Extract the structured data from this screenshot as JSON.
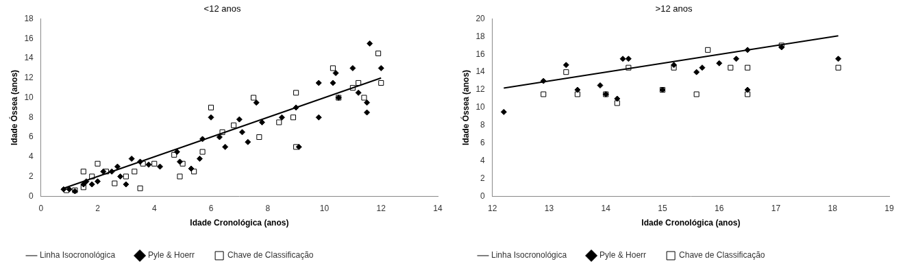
{
  "chart_data": [
    {
      "type": "scatter",
      "title": "<12 anos",
      "x_label": "Idade Cronológica (anos)",
      "y_label": "Idade Óssea (anos)",
      "xlim": [
        0,
        14
      ],
      "xticks": [
        0,
        2,
        4,
        6,
        8,
        10,
        12,
        14
      ],
      "ylim": [
        0,
        18
      ],
      "yticks": [
        0,
        2,
        4,
        6,
        8,
        10,
        12,
        14,
        16,
        18
      ],
      "grid": false,
      "legend": "bottom",
      "series": [
        {
          "name": "Pyle & Hoerr",
          "color": "#000000",
          "marker": "diamond",
          "x": [
            0.8,
            1.0,
            1.2,
            1.5,
            1.6,
            1.8,
            2.0,
            2.2,
            2.5,
            2.7,
            2.8,
            3.0,
            3.2,
            3.5,
            3.8,
            4.2,
            4.8,
            4.9,
            5.3,
            5.6,
            5.7,
            6.0,
            6.3,
            6.5,
            7.0,
            7.1,
            7.3,
            7.6,
            7.8,
            8.5,
            9.0,
            9.1,
            9.8,
            9.8,
            10.3,
            10.4,
            10.5,
            11.0,
            11.2,
            11.5,
            11.6,
            11.5,
            12.0
          ],
          "values": [
            0.7,
            0.7,
            0.5,
            1.2,
            1.5,
            1.2,
            1.5,
            2.5,
            2.5,
            3.0,
            2.0,
            1.2,
            3.8,
            3.5,
            3.2,
            3.0,
            4.5,
            3.5,
            2.8,
            3.8,
            5.8,
            8.0,
            6.0,
            5.0,
            7.8,
            6.5,
            5.5,
            9.5,
            7.5,
            8.0,
            9.0,
            5.0,
            11.5,
            8.0,
            11.5,
            12.5,
            10.0,
            13.0,
            10.5,
            8.5,
            15.5,
            9.5,
            13.0
          ]
        },
        {
          "name": "Chave de Classificação",
          "color": "#000000",
          "marker": "square",
          "x": [
            0.9,
            1.2,
            1.5,
            1.5,
            1.8,
            2.0,
            2.3,
            2.6,
            3.0,
            3.3,
            3.5,
            3.6,
            4.0,
            4.7,
            4.9,
            5.0,
            5.4,
            5.7,
            6.0,
            6.4,
            6.8,
            7.5,
            7.7,
            8.4,
            8.9,
            9.0,
            9.0,
            10.3,
            10.5,
            11.0,
            11.2,
            11.4,
            11.9,
            12.0
          ],
          "values": [
            0.6,
            0.6,
            2.5,
            0.9,
            2.0,
            3.3,
            2.5,
            1.3,
            2.0,
            2.5,
            0.8,
            3.3,
            3.3,
            4.2,
            2.0,
            3.3,
            2.5,
            4.5,
            9.0,
            6.5,
            7.2,
            10.0,
            6.0,
            7.5,
            8.0,
            10.5,
            5.0,
            13.0,
            10.0,
            11.0,
            11.5,
            10.0,
            14.5,
            11.5
          ]
        },
        {
          "name": "Linha Isocronológica",
          "color": "#000000",
          "type": "line",
          "line_style": "solid",
          "marker": "none",
          "x": [
            0.8,
            12.0
          ],
          "values": [
            0.8,
            12.0
          ]
        }
      ]
    },
    {
      "type": "scatter",
      "title": ">12 anos",
      "x_label": "Idade Cronológica (anos)",
      "y_label": "Idade Óssea (anos)",
      "xlim": [
        12,
        19
      ],
      "xticks": [
        12,
        13,
        14,
        15,
        16,
        17,
        18,
        19
      ],
      "ylim": [
        0,
        20
      ],
      "yticks": [
        0,
        2,
        4,
        6,
        8,
        10,
        12,
        14,
        16,
        18,
        20
      ],
      "grid": false,
      "legend": "bottom",
      "series": [
        {
          "name": "Pyle & Hoerr",
          "color": "#000000",
          "marker": "diamond",
          "x": [
            12.2,
            12.9,
            13.3,
            13.5,
            13.9,
            14.0,
            14.2,
            14.3,
            14.4,
            15.0,
            15.2,
            15.6,
            15.7,
            16.0,
            16.3,
            16.5,
            16.5,
            17.1,
            18.1
          ],
          "values": [
            9.5,
            13.0,
            14.8,
            12.0,
            12.5,
            11.5,
            11.0,
            15.5,
            15.5,
            12.0,
            14.8,
            14.0,
            14.5,
            15.0,
            15.5,
            12.0,
            16.5,
            16.8,
            15.5
          ]
        },
        {
          "name": "Chave de Classificação",
          "color": "#000000",
          "marker": "square",
          "x": [
            12.9,
            13.3,
            13.5,
            14.0,
            14.2,
            14.4,
            15.0,
            15.2,
            15.6,
            15.8,
            16.2,
            16.5,
            16.5,
            17.1,
            18.1
          ],
          "values": [
            11.5,
            14.0,
            11.5,
            11.5,
            10.5,
            14.5,
            12.0,
            14.5,
            11.5,
            16.5,
            14.5,
            14.5,
            11.5,
            17.0,
            14.5
          ]
        },
        {
          "name": "Linha Isocronológica",
          "color": "#000000",
          "type": "line",
          "line_style": "solid",
          "marker": "none",
          "x": [
            12.2,
            18.1
          ],
          "values": [
            12.2,
            18.1
          ]
        }
      ]
    }
  ]
}
